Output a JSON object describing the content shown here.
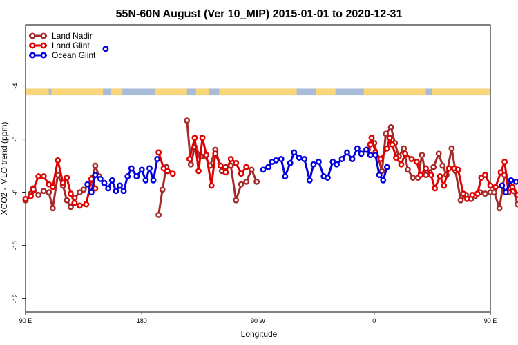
{
  "chart_data": {
    "type": "line",
    "title": "55N-60N August (Ver 10_MIP)   2015-01-01 to 2020-12-31",
    "xlabel": "Longitude",
    "ylabel": "XCO2 - MLO trend (ppm)",
    "xlim": [
      90,
      450
    ],
    "ylim": [
      -12.5,
      -1.7
    ],
    "x_ticks": [
      {
        "value": 90,
        "label": "90 E"
      },
      {
        "value": 180,
        "label": "180"
      },
      {
        "value": 270,
        "label": "90 W"
      },
      {
        "value": 360,
        "label": "0"
      },
      {
        "value": 450,
        "label": "90 E"
      },
      {
        "value": 540,
        "label": "180"
      }
    ],
    "y_ticks": [
      {
        "value": -4,
        "label": "-4"
      },
      {
        "value": -6,
        "label": "-6"
      },
      {
        "value": -8,
        "label": "-8"
      },
      {
        "value": -10,
        "label": "-10"
      },
      {
        "value": -12,
        "label": "-12"
      }
    ],
    "grid": false,
    "legend_position": "top-left",
    "land_mask_band": {
      "y_top": -4.1,
      "y_bottom": -4.35,
      "ocean_color": "#a8bcd8",
      "land_color": "#fad67a"
    },
    "series": [
      {
        "name": "Land Nadir",
        "color": "#a52a2a",
        "segments": [
          [
            [
              90,
              -8.3
            ],
            [
              94,
              -8.05
            ],
            [
              96,
              -7.85
            ],
            [
              100,
              -8.1
            ],
            [
              104,
              -7.95
            ],
            [
              108,
              -8.0
            ],
            [
              111,
              -8.6
            ],
            [
              115,
              -7.35
            ],
            [
              119,
              -7.75
            ],
            [
              122,
              -8.3
            ],
            [
              125,
              -8.55
            ],
            [
              128,
              -8.2
            ],
            [
              132,
              -8.0
            ],
            [
              135,
              -7.9
            ],
            [
              139,
              -7.7
            ],
            [
              142,
              -7.45
            ],
            [
              144,
              -7.0
            ],
            [
              147,
              -7.4
            ]
          ],
          [
            [
              193,
              -8.85
            ],
            [
              196,
              -7.9
            ],
            [
              199,
              -7.05
            ]
          ],
          [
            [
              215,
              -5.3
            ],
            [
              218,
              -6.95
            ],
            [
              221,
              -6.3
            ],
            [
              226,
              -6.65
            ],
            [
              229,
              -6.65
            ],
            [
              233,
              -7.0
            ],
            [
              237,
              -6.4
            ],
            [
              242,
              -7.2
            ],
            [
              245,
              -7.05
            ],
            [
              249,
              -7.0
            ],
            [
              253,
              -8.3
            ],
            [
              257,
              -7.7
            ],
            [
              261,
              -7.6
            ],
            [
              265,
              -7.15
            ],
            [
              269,
              -7.6
            ]
          ],
          [
            [
              360,
              -6.15
            ],
            [
              366,
              -7.2
            ],
            [
              369,
              -5.8
            ],
            [
              373,
              -5.55
            ],
            [
              376,
              -6.15
            ],
            [
              379,
              -6.65
            ],
            [
              383,
              -6.35
            ],
            [
              386,
              -7.15
            ],
            [
              390,
              -7.45
            ],
            [
              394,
              -7.45
            ],
            [
              397,
              -6.6
            ],
            [
              400,
              -7.35
            ],
            [
              403,
              -7.25
            ],
            [
              406,
              -7.05
            ],
            [
              410,
              -6.55
            ],
            [
              413,
              -7.0
            ],
            [
              416,
              -7.35
            ],
            [
              420,
              -6.35
            ],
            [
              423,
              -7.2
            ],
            [
              427,
              -8.3
            ],
            [
              431,
              -8.1
            ],
            [
              435,
              -8.25
            ],
            [
              438,
              -8.15
            ],
            [
              442,
              -8.0
            ],
            [
              446,
              -8.05
            ],
            [
              450,
              -8.0
            ],
            [
              453,
              -8.0
            ],
            [
              457,
              -8.6
            ],
            [
              461,
              -7.35
            ],
            [
              465,
              -7.7
            ],
            [
              468,
              -7.95
            ],
            [
              471,
              -8.45
            ],
            [
              474,
              -8.6
            ],
            [
              478,
              -8.3
            ],
            [
              482,
              -7.95
            ],
            [
              486,
              -7.75
            ],
            [
              490,
              -7.45
            ],
            [
              494,
              -7.0
            ],
            [
              497,
              -7.45
            ]
          ]
        ]
      },
      {
        "name": "Land Glint",
        "color": "#e00000",
        "segments": [
          [
            [
              90,
              -8.25
            ],
            [
              94,
              -8.15
            ],
            [
              96,
              -7.9
            ],
            [
              100,
              -7.4
            ],
            [
              104,
              -7.4
            ],
            [
              108,
              -7.7
            ],
            [
              111,
              -7.8
            ],
            [
              115,
              -6.8
            ],
            [
              119,
              -7.65
            ],
            [
              122,
              -7.45
            ],
            [
              125,
              -8.05
            ],
            [
              128,
              -8.4
            ],
            [
              132,
              -8.5
            ],
            [
              137,
              -8.45
            ],
            [
              141,
              -7.5
            ],
            [
              144,
              -7.85
            ]
          ],
          [
            [
              193,
              -6.5
            ],
            [
              197,
              -7.1
            ],
            [
              200,
              -7.2
            ],
            [
              204,
              -7.3
            ]
          ],
          [
            [
              217,
              -6.75
            ],
            [
              221,
              -5.95
            ],
            [
              224,
              -7.2
            ],
            [
              227,
              -5.95
            ],
            [
              230,
              -6.6
            ],
            [
              234,
              -7.75
            ],
            [
              237,
              -6.55
            ],
            [
              241,
              -7.0
            ],
            [
              245,
              -7.25
            ],
            [
              249,
              -6.75
            ],
            [
              253,
              -6.9
            ],
            [
              257,
              -7.3
            ],
            [
              261,
              -7.05
            ]
          ],
          [
            [
              355,
              -6.4
            ],
            [
              357,
              -6.2
            ],
            [
              358,
              -5.95
            ],
            [
              361,
              -6.5
            ],
            [
              365,
              -6.75
            ],
            [
              370,
              -6.35
            ],
            [
              372,
              -5.95
            ],
            [
              374,
              -6.2
            ],
            [
              377,
              -6.7
            ],
            [
              381,
              -6.95
            ],
            [
              384,
              -6.55
            ],
            [
              389,
              -6.75
            ],
            [
              393,
              -6.85
            ],
            [
              396,
              -7.35
            ],
            [
              400,
              -7.1
            ],
            [
              404,
              -7.35
            ],
            [
              407,
              -7.85
            ],
            [
              411,
              -7.4
            ],
            [
              414,
              -7.75
            ],
            [
              418,
              -7.1
            ],
            [
              422,
              -7.1
            ],
            [
              425,
              -7.15
            ],
            [
              429,
              -8.05
            ],
            [
              432,
              -8.25
            ],
            [
              436,
              -8.1
            ],
            [
              440,
              -8.05
            ],
            [
              443,
              -7.45
            ],
            [
              446,
              -7.35
            ],
            [
              450,
              -7.75
            ],
            [
              454,
              -7.8
            ],
            [
              458,
              -7.25
            ],
            [
              461,
              -6.85
            ],
            [
              464,
              -8.0
            ],
            [
              467,
              -7.8
            ],
            [
              471,
              -8.1
            ],
            [
              474,
              -8.0
            ],
            [
              477,
              -8.5
            ],
            [
              480,
              -8.5
            ],
            [
              483,
              -8.35
            ],
            [
              487,
              -8.25
            ],
            [
              490,
              -7.35
            ],
            [
              493,
              -7.85
            ],
            [
              496,
              -7.45
            ]
          ]
        ]
      },
      {
        "name": "Ocean Glint",
        "color": "#0000e0",
        "segments": [
          [
            [
              152,
              -2.6
            ]
          ],
          [
            [
              138,
              -7.7
            ],
            [
              141,
              -8.0
            ],
            [
              144,
              -7.35
            ],
            [
              148,
              -7.5
            ],
            [
              151,
              -7.65
            ],
            [
              154,
              -7.85
            ],
            [
              157,
              -7.55
            ],
            [
              160,
              -7.95
            ],
            [
              163,
              -7.75
            ],
            [
              166,
              -7.95
            ],
            [
              169,
              -7.4
            ],
            [
              172,
              -7.1
            ],
            [
              176,
              -7.4
            ],
            [
              180,
              -7.15
            ],
            [
              183,
              -7.55
            ],
            [
              186,
              -7.1
            ],
            [
              189,
              -7.55
            ],
            [
              192,
              -6.75
            ]
          ],
          [
            [
              274,
              -7.15
            ],
            [
              278,
              -7.05
            ],
            [
              281,
              -6.85
            ],
            [
              284,
              -6.8
            ],
            [
              288,
              -6.75
            ],
            [
              291,
              -7.4
            ],
            [
              295,
              -6.9
            ],
            [
              298,
              -6.5
            ],
            [
              302,
              -6.7
            ],
            [
              306,
              -6.75
            ],
            [
              310,
              -7.55
            ],
            [
              313,
              -6.95
            ],
            [
              317,
              -6.85
            ],
            [
              321,
              -7.4
            ],
            [
              324,
              -7.45
            ],
            [
              328,
              -6.85
            ],
            [
              331,
              -6.95
            ],
            [
              335,
              -6.75
            ],
            [
              339,
              -6.5
            ],
            [
              343,
              -6.75
            ],
            [
              347,
              -6.35
            ],
            [
              350,
              -6.55
            ],
            [
              354,
              -6.4
            ],
            [
              357,
              -6.6
            ],
            [
              361,
              -6.6
            ],
            [
              364,
              -7.35
            ],
            [
              367,
              -7.55
            ],
            [
              370,
              -7.05
            ]
          ],
          [
            [
              459,
              -7.75
            ],
            [
              462,
              -8.0
            ],
            [
              466,
              -7.55
            ],
            [
              470,
              -7.6
            ],
            [
              474,
              -7.65
            ],
            [
              477,
              -7.8
            ],
            [
              481,
              -7.7
            ],
            [
              485,
              -7.6
            ],
            [
              488,
              -7.95
            ],
            [
              492,
              -7.75
            ]
          ]
        ]
      }
    ]
  }
}
